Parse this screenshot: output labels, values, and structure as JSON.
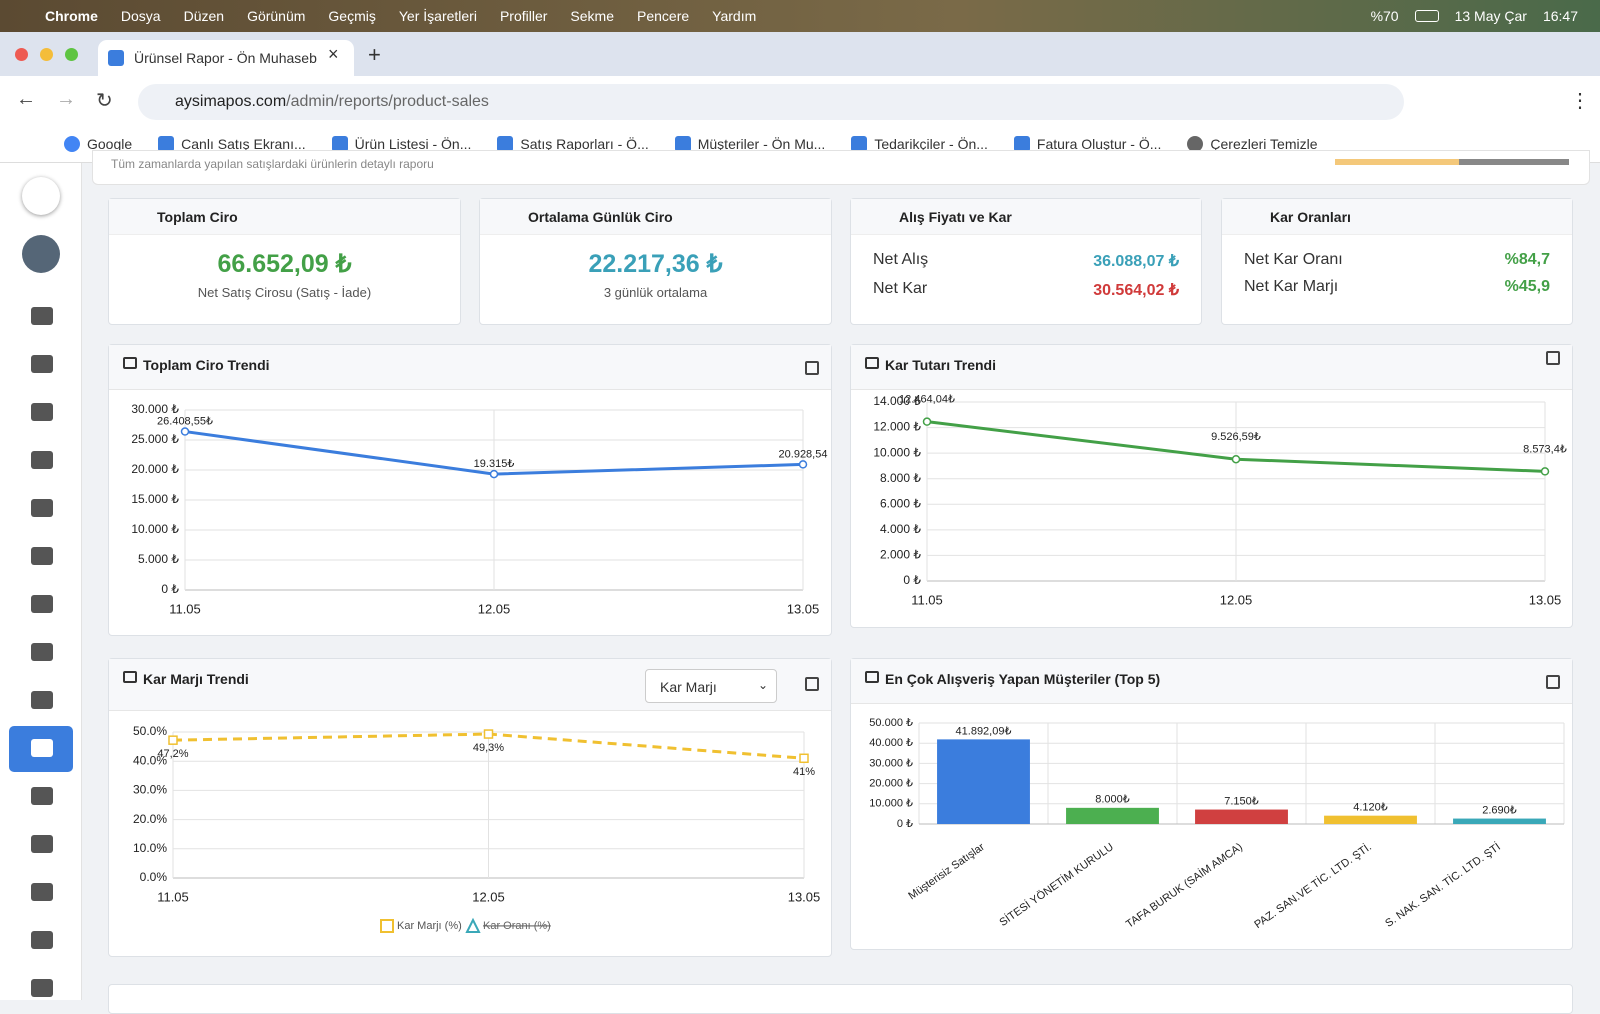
{
  "menubar": {
    "app": "Chrome",
    "items": [
      "Dosya",
      "Düzen",
      "Görünüm",
      "Geçmiş",
      "Yer İşaretleri",
      "Profiller",
      "Sekme",
      "Pencere",
      "Yardım"
    ],
    "battery": "%70",
    "date": "13 May Çar",
    "time": "16:47"
  },
  "tab": {
    "title": "Ürünsel Rapor - Ön Muhaseb"
  },
  "address": {
    "url_host": "aysimapos.com",
    "url_path": "/admin/reports/product-sales"
  },
  "bookmarks": [
    "Google",
    "Canlı Satış Ekranı...",
    "Ürün Listesi - Ön...",
    "Satış Raporları - Ö...",
    "Müşteriler - Ön Mu...",
    "Tedarikçiler - Ön...",
    "Fatura Oluştur - Ö...",
    "Çerezleri Temizle"
  ],
  "header": {
    "subtitle": "Tüm zamanlarda yapılan satışlardaki ürünlerin detaylı raporu"
  },
  "cards": [
    {
      "title": "Toplam Ciro",
      "value": "66.652,09 ₺",
      "note": "Net Satış Cirosu (Satış - İade)"
    },
    {
      "title": "Ortalama Günlük Ciro",
      "value": "22.217,36 ₺",
      "note": "3 günlük ortalama"
    },
    {
      "title": "Alış Fiyatı ve Kar",
      "rows": [
        {
          "label": "Net Alış",
          "value": "36.088,07 ₺"
        },
        {
          "label": "Net Kar",
          "value": "30.564,02 ₺"
        }
      ]
    },
    {
      "title": "Kar Oranları",
      "rows": [
        {
          "label": "Net Kar Oranı",
          "value": "%84,7"
        },
        {
          "label": "Net Kar Marjı",
          "value": "%45,9"
        }
      ]
    }
  ],
  "margin_select": "Kar Marjı",
  "chart_data": [
    {
      "type": "line",
      "title": "Toplam Ciro Trendi",
      "categories": [
        "11.05",
        "12.05",
        "13.05"
      ],
      "values": [
        26408.55,
        19315,
        20928.54
      ],
      "value_labels": [
        "26.408,55₺",
        "19.315₺",
        "20.928,54"
      ],
      "color": "#3b7ddd",
      "ylim": [
        0,
        30000
      ],
      "yticks": [
        {
          "value": 0,
          "label": "0 ₺"
        },
        {
          "value": 5000,
          "label": "5.000 ₺"
        },
        {
          "value": 10000,
          "label": "10.000 ₺"
        },
        {
          "value": 15000,
          "label": "15.000 ₺"
        },
        {
          "value": 20000,
          "label": "20.000 ₺"
        },
        {
          "value": 25000,
          "label": "25.000 ₺"
        },
        {
          "value": 30000,
          "label": "30.000 ₺"
        }
      ],
      "grid": true
    },
    {
      "type": "line",
      "title": "Kar Tutarı Trendi",
      "categories": [
        "11.05",
        "12.05",
        "13.05"
      ],
      "values": [
        12464.04,
        9526.59,
        8573.4
      ],
      "value_labels": [
        "12.464,04₺",
        "9.526,59₺",
        "8.573,4₺"
      ],
      "color": "#43a047",
      "ylim": [
        0,
        14000
      ],
      "yticks": [
        {
          "value": 0,
          "label": "0 ₺"
        },
        {
          "value": 2000,
          "label": "2.000 ₺"
        },
        {
          "value": 4000,
          "label": "4.000 ₺"
        },
        {
          "value": 6000,
          "label": "6.000 ₺"
        },
        {
          "value": 8000,
          "label": "8.000 ₺"
        },
        {
          "value": 10000,
          "label": "10.000 ₺"
        },
        {
          "value": 12000,
          "label": "12.000 ₺"
        },
        {
          "value": 14000,
          "label": "14.000 ₺"
        }
      ],
      "grid": true
    },
    {
      "type": "line",
      "title": "Kar Marjı Trendi",
      "categories": [
        "11.05",
        "12.05",
        "13.05"
      ],
      "series": [
        {
          "name": "Kar Marjı (%)",
          "color": "#f0c030",
          "values": [
            47.2,
            49.3,
            41
          ],
          "value_labels": [
            "47,2%",
            "49,3%",
            "41%"
          ],
          "dashed": true,
          "marker": "square"
        },
        {
          "name": "Kar Oranı (%)",
          "color": "#3aa8b8",
          "values": [
            null,
            null,
            null
          ],
          "hidden": true,
          "marker": "triangle"
        }
      ],
      "ylim": [
        0,
        50
      ],
      "yticks": [
        {
          "value": 0,
          "label": "0.0%"
        },
        {
          "value": 10,
          "label": "10.0%"
        },
        {
          "value": 20,
          "label": "20.0%"
        },
        {
          "value": 30,
          "label": "30.0%"
        },
        {
          "value": 40,
          "label": "40.0%"
        },
        {
          "value": 50,
          "label": "50.0%"
        }
      ],
      "grid": true,
      "legend": "bottom"
    },
    {
      "type": "bar",
      "title": "En Çok Alışveriş Yapan Müşteriler (Top 5)",
      "categories": [
        "Müşterisiz Satışlar",
        "SİTESİ YÖNETİM KURULU",
        "TAFA BURUK (SAİM AMCA)",
        "PAZ. SAN.VE TİC. LTD. ŞTİ.",
        "S. NAK. SAN. TİC. LTD. ŞTİ"
      ],
      "values": [
        41892.09,
        8000,
        7150,
        4120,
        2690
      ],
      "value_labels": [
        "41.892,09₺",
        "8.000₺",
        "7.150₺",
        "4.120₺",
        "2.690₺"
      ],
      "colors": [
        "#3b7ddd",
        "#4caf50",
        "#d04040",
        "#f0c030",
        "#3aa8b8"
      ],
      "ylim": [
        0,
        50000
      ],
      "yticks": [
        {
          "value": 0,
          "label": "0 ₺"
        },
        {
          "value": 10000,
          "label": "10.000 ₺"
        },
        {
          "value": 20000,
          "label": "20.000 ₺"
        },
        {
          "value": 30000,
          "label": "30.000 ₺"
        },
        {
          "value": 40000,
          "label": "40.000 ₺"
        },
        {
          "value": 50000,
          "label": "50.000 ₺"
        }
      ],
      "grid": true
    }
  ]
}
